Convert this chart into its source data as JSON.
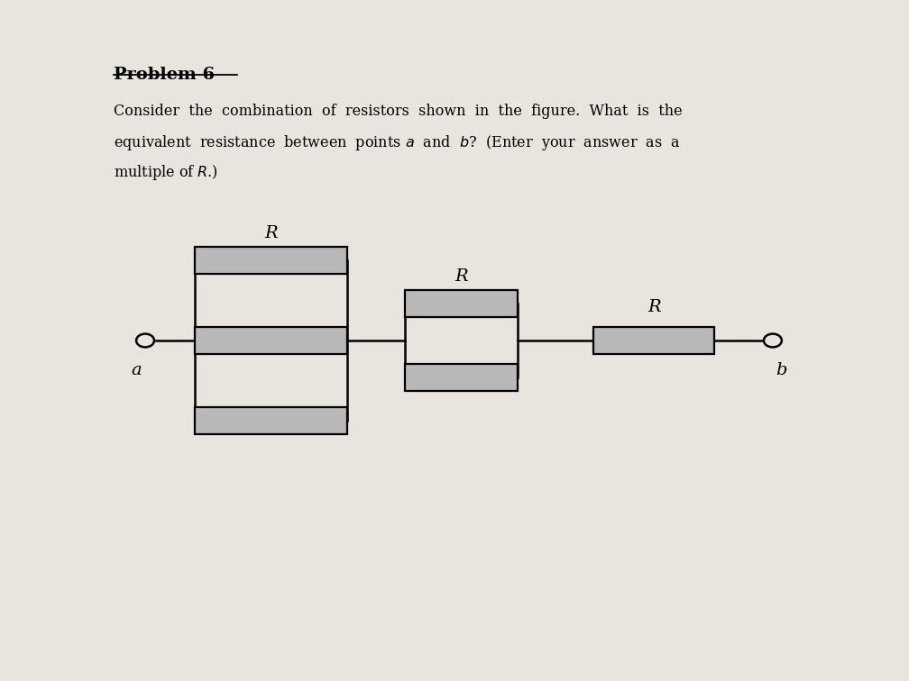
{
  "title": "Problem 6",
  "background_color": "#e8e4de",
  "paper_color": "#f2ede8",
  "resistor_fill": "#b8b8b8",
  "resistor_edge": "#000000",
  "line_color": "#000000",
  "point_a_label": "a",
  "point_b_label": "b",
  "line1": "Consider  the  combination  of  resistors  shown  in  the  figure.  What  is  the",
  "line2": "equivalent  resistance  between  points $a$  and  $b$?  (Enter  your  answer  as  a",
  "line3": "multiple of $R$.)"
}
